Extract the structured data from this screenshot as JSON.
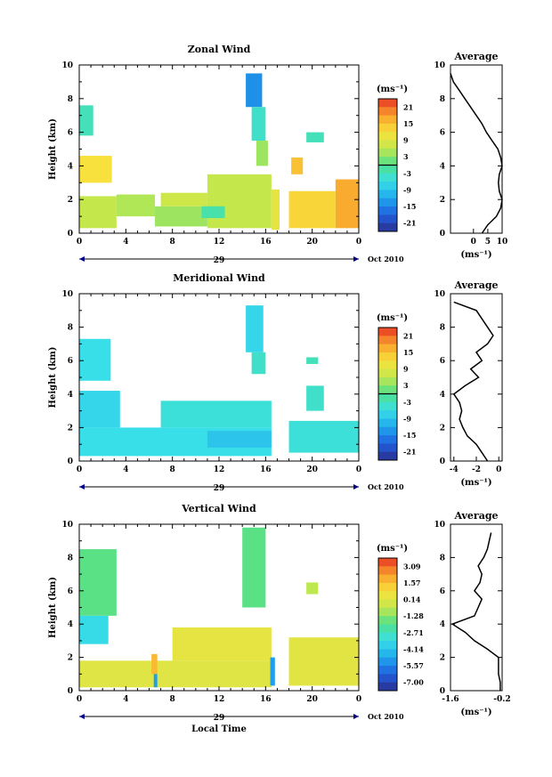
{
  "figure": {
    "date_label": "Oct 2010",
    "day_label": "29",
    "xlabel": "Local Time"
  },
  "chart_data": [
    {
      "type": "heatmap",
      "title": "Zonal Wind",
      "ylabel": "Height (km)",
      "ylim": [
        0,
        10
      ],
      "yticks": [
        "0",
        "2",
        "4",
        "6",
        "8",
        "10"
      ],
      "xlim": [
        0,
        24
      ],
      "xticks": [
        "0",
        "4",
        "8",
        "12",
        "16",
        "20",
        "0"
      ],
      "colorbar": {
        "unit": "(ms⁻¹)",
        "labels": [
          "21",
          "15",
          "9",
          "3",
          "-3",
          "-9",
          "-15",
          "-21"
        ],
        "range": [
          -24,
          24
        ],
        "zero_line": true
      },
      "cells": [
        {
          "t0": 0,
          "t1": 1.2,
          "h0": 5.8,
          "h1": 7.6,
          "v": -3
        },
        {
          "t0": 0,
          "t1": 2.8,
          "h0": 3.0,
          "h1": 4.6,
          "v": 12
        },
        {
          "t0": 0,
          "t1": 3.2,
          "h0": 0.3,
          "h1": 2.2,
          "v": 6
        },
        {
          "t0": 3.2,
          "t1": 6.5,
          "h0": 1.0,
          "h1": 2.3,
          "v": 5
        },
        {
          "t0": 6.5,
          "t1": 11,
          "h0": 0.4,
          "h1": 1.6,
          "v": 4
        },
        {
          "t0": 7,
          "t1": 11,
          "h0": 1.6,
          "h1": 2.4,
          "v": 7
        },
        {
          "t0": 11,
          "t1": 16.5,
          "h0": 0.3,
          "h1": 3.5,
          "v": 6
        },
        {
          "t0": 10.5,
          "t1": 12.5,
          "h0": 0.9,
          "h1": 1.6,
          "v": -2
        },
        {
          "t0": 14.3,
          "t1": 15.7,
          "h0": 7.5,
          "h1": 9.5,
          "v": -14
        },
        {
          "t0": 14.8,
          "t1": 16,
          "h0": 5.5,
          "h1": 7.5,
          "v": -4
        },
        {
          "t0": 15.2,
          "t1": 16.2,
          "h0": 4.0,
          "h1": 5.5,
          "v": 4
        },
        {
          "t0": 16.5,
          "t1": 17.2,
          "h0": 0.2,
          "h1": 2.6,
          "v": 10
        },
        {
          "t0": 18.2,
          "t1": 19.2,
          "h0": 3.5,
          "h1": 4.5,
          "v": 15
        },
        {
          "t0": 18,
          "t1": 19.5,
          "h0": 1.0,
          "h1": 2.4,
          "v": 2
        },
        {
          "t0": 18,
          "t1": 22,
          "h0": 0.3,
          "h1": 2.5,
          "v": 13
        },
        {
          "t0": 22,
          "t1": 24,
          "h0": 0.3,
          "h1": 3.2,
          "v": 17
        },
        {
          "t0": 19.5,
          "t1": 21,
          "h0": 5.4,
          "h1": 6.0,
          "v": -3
        }
      ],
      "profile": {
        "title": "Average",
        "xlim": [
          -8,
          10
        ],
        "xticks": [
          "0",
          "5",
          "10"
        ],
        "xtick_values": [
          0,
          5,
          10
        ],
        "xlabel": "(ms⁻¹)",
        "heights": [
          0,
          0.5,
          1,
          1.5,
          2,
          2.5,
          3,
          3.5,
          4,
          4.5,
          5,
          5.5,
          6,
          6.5,
          7,
          7.5,
          8,
          8.5,
          9,
          9.5
        ],
        "values": [
          3,
          5,
          8,
          9.5,
          10,
          9,
          8.7,
          9,
          10,
          9.5,
          8.5,
          6.5,
          4.5,
          3,
          1,
          -1,
          -3,
          -5,
          -7,
          -8
        ]
      }
    },
    {
      "type": "heatmap",
      "title": "Meridional Wind",
      "ylabel": "Height (km)",
      "ylim": [
        0,
        10
      ],
      "yticks": [
        "0",
        "2",
        "4",
        "6",
        "8",
        "10"
      ],
      "xlim": [
        0,
        24
      ],
      "xticks": [
        "0",
        "4",
        "8",
        "12",
        "16",
        "20",
        "0"
      ],
      "colorbar": {
        "unit": "(ms⁻¹)",
        "labels": [
          "21",
          "15",
          "9",
          "3",
          "-3",
          "-9",
          "-15",
          "-21"
        ],
        "range": [
          -24,
          24
        ],
        "zero_line": true
      },
      "cells": [
        {
          "t0": 0,
          "t1": 2.7,
          "h0": 4.8,
          "h1": 7.3,
          "v": -6
        },
        {
          "t0": 0,
          "t1": 3.5,
          "h0": 2.0,
          "h1": 4.2,
          "v": -7
        },
        {
          "t0": 0,
          "t1": 16.5,
          "h0": 0.3,
          "h1": 2.0,
          "v": -6
        },
        {
          "t0": 7,
          "t1": 16.5,
          "h0": 2.0,
          "h1": 3.6,
          "v": -5
        },
        {
          "t0": 11,
          "t1": 16.5,
          "h0": 0.8,
          "h1": 1.8,
          "v": -9
        },
        {
          "t0": 14.3,
          "t1": 15.8,
          "h0": 6.5,
          "h1": 9.3,
          "v": -7
        },
        {
          "t0": 14.8,
          "t1": 16,
          "h0": 5.2,
          "h1": 6.5,
          "v": -4
        },
        {
          "t0": 18,
          "t1": 24,
          "h0": 0.5,
          "h1": 2.4,
          "v": -5
        },
        {
          "t0": 19.5,
          "t1": 21,
          "h0": 3.0,
          "h1": 4.5,
          "v": -4
        },
        {
          "t0": 19.5,
          "t1": 20.5,
          "h0": 5.8,
          "h1": 6.2,
          "v": -3
        }
      ],
      "profile": {
        "title": "Average",
        "xlim": [
          -4.3,
          0.3
        ],
        "xticks": [
          "-4",
          "-2",
          "0"
        ],
        "xtick_values": [
          -4,
          -2,
          0
        ],
        "xlabel": "(ms⁻¹)",
        "heights": [
          0,
          0.5,
          1,
          1.5,
          2,
          2.5,
          3,
          3.5,
          4,
          4.5,
          5,
          5.5,
          6,
          6.5,
          7,
          7.5,
          8,
          8.5,
          9,
          9.5
        ],
        "values": [
          -1,
          -1.5,
          -2,
          -2.8,
          -3.2,
          -3.5,
          -3.3,
          -3.5,
          -4,
          -3,
          -1.8,
          -2.5,
          -1.5,
          -2,
          -1,
          -0.5,
          -1,
          -1.5,
          -2,
          -4
        ]
      }
    },
    {
      "type": "heatmap",
      "title": "Vertical Wind",
      "ylabel": "Height (km)",
      "ylim": [
        0,
        10
      ],
      "yticks": [
        "0",
        "2",
        "4",
        "6",
        "8",
        "10"
      ],
      "xlim": [
        0,
        24
      ],
      "xticks": [
        "0",
        "4",
        "8",
        "12",
        "16",
        "20",
        "0"
      ],
      "colorbar": {
        "unit": "(ms⁻¹)",
        "labels": [
          "3.09",
          "1.57",
          "0.14",
          "-1.28",
          "-2.71",
          "-4.14",
          "-5.57",
          "-7.00"
        ],
        "range": [
          -7.7,
          3.8
        ],
        "zero_line": false
      },
      "cells": [
        {
          "t0": 0,
          "t1": 3.2,
          "h0": 4.5,
          "h1": 8.5,
          "v": -1.8
        },
        {
          "t0": 0,
          "t1": 2.5,
          "h0": 2.8,
          "h1": 4.5,
          "v": -3.5
        },
        {
          "t0": 0,
          "t1": 16.5,
          "h0": 0.2,
          "h1": 1.8,
          "v": 0.2
        },
        {
          "t0": 8,
          "t1": 16.5,
          "h0": 1.8,
          "h1": 3.8,
          "v": 0.4
        },
        {
          "t0": 6.2,
          "t1": 6.7,
          "h0": 1.0,
          "h1": 2.2,
          "v": 1.8
        },
        {
          "t0": 6.4,
          "t1": 6.7,
          "h0": 0.2,
          "h1": 1.0,
          "v": -5
        },
        {
          "t0": 14,
          "t1": 16,
          "h0": 5.0,
          "h1": 9.8,
          "v": -1.8
        },
        {
          "t0": 16.4,
          "t1": 16.8,
          "h0": 0.3,
          "h1": 2.0,
          "v": -5
        },
        {
          "t0": 18,
          "t1": 24,
          "h0": 0.3,
          "h1": 3.2,
          "v": 0.3
        },
        {
          "t0": 19.5,
          "t1": 20.5,
          "h0": 5.8,
          "h1": 6.5,
          "v": -0.6
        }
      ],
      "profile": {
        "title": "Average",
        "xlim": [
          -1.6,
          -0.2
        ],
        "xticks": [
          "-1.6",
          "-0.2"
        ],
        "xtick_values": [
          -1.6,
          -0.2
        ],
        "xlabel": "(ms⁻¹)",
        "heights": [
          0,
          0.5,
          1,
          1.5,
          2,
          2.5,
          3,
          3.5,
          4,
          4.5,
          5,
          5.5,
          6,
          6.5,
          7,
          7.5,
          8,
          8.5,
          9,
          9.5
        ],
        "values": [
          -0.25,
          -0.25,
          -0.3,
          -0.3,
          -0.3,
          -0.6,
          -0.95,
          -1.2,
          -1.55,
          -0.95,
          -0.85,
          -0.75,
          -0.95,
          -0.8,
          -0.75,
          -0.85,
          -0.7,
          -0.6,
          -0.55,
          -0.5
        ]
      }
    }
  ]
}
